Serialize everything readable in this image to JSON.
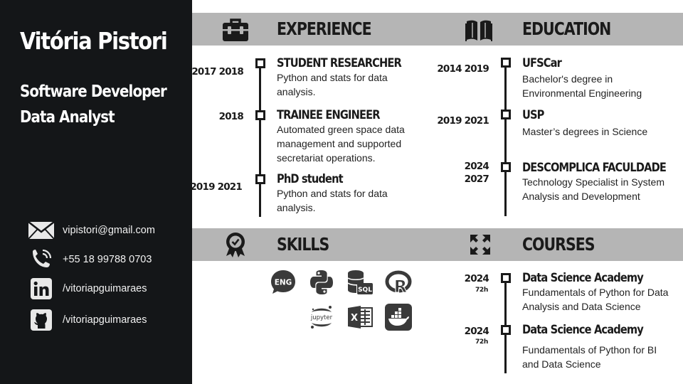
{
  "profile": {
    "name": "Vitória Pistori",
    "roles": [
      "Software Developer",
      "Data Analyst"
    ]
  },
  "contacts": [
    {
      "icon": "envelope-icon",
      "text": "vipistori@gmail.com"
    },
    {
      "icon": "phone-icon",
      "text": "+55 18 99788 0703"
    },
    {
      "icon": "linkedin-icon",
      "text": "/vitoriapguimaraes"
    },
    {
      "icon": "github-icon",
      "text": "/vitoriapguimaraes"
    }
  ],
  "experience": {
    "title": "EXPERIENCE",
    "icon": "briefcase-icon",
    "items": [
      {
        "years": "2017 2018",
        "title": "STUDENT RESEARCHER",
        "desc": "Python and stats for data analysis."
      },
      {
        "years": "2018",
        "title": "TRAINEE ENGINEER",
        "desc": "Automated green space data management and supported secretariat operations."
      },
      {
        "years": "2019 2021",
        "title": "PhD student",
        "desc": "Python and stats for data analysis."
      }
    ]
  },
  "education": {
    "title": "EDUCATION",
    "icon": "book-icon",
    "items": [
      {
        "years": "2014 2019",
        "title": "UFSCar",
        "desc": "Bachelor's degree in Environmental Engineering"
      },
      {
        "years": "2019 2021",
        "title": "USP",
        "desc": "Master’s degrees in Science"
      },
      {
        "years": "2024",
        "years2": "2027",
        "title": "DESCOMPLICA FACULDADE",
        "desc": "Technology Specialist in System Analysis and Development"
      }
    ]
  },
  "skills": {
    "title": "SKILLS",
    "icon": "award-icon",
    "items": [
      {
        "icon": "english-icon",
        "label": "ENG"
      },
      {
        "icon": "python-icon"
      },
      {
        "icon": "sql-database-icon",
        "label": "SQL"
      },
      {
        "icon": "r-language-icon",
        "label": "R"
      },
      {
        "icon": "jupyter-icon",
        "label": "jupyter"
      },
      {
        "icon": "excel-icon",
        "label": "X"
      },
      {
        "icon": "docker-icon"
      }
    ]
  },
  "courses": {
    "title": "COURSES",
    "icon": "expand-arrows-icon",
    "items": [
      {
        "years": "2024",
        "hours": "72h",
        "title": "Data Science Academy",
        "desc": "Fundamentals of Python for Data Analysis and Data Science"
      },
      {
        "years": "2024",
        "hours": "72h",
        "title": "Data Science Academy",
        "desc": "Fundamentals of Python for BI and Data Science"
      }
    ]
  },
  "colors": {
    "sidebar": "#141618",
    "band": "#b5b5b5",
    "text": "#1a1a1a",
    "skill_icon": "#3a3a3a"
  }
}
